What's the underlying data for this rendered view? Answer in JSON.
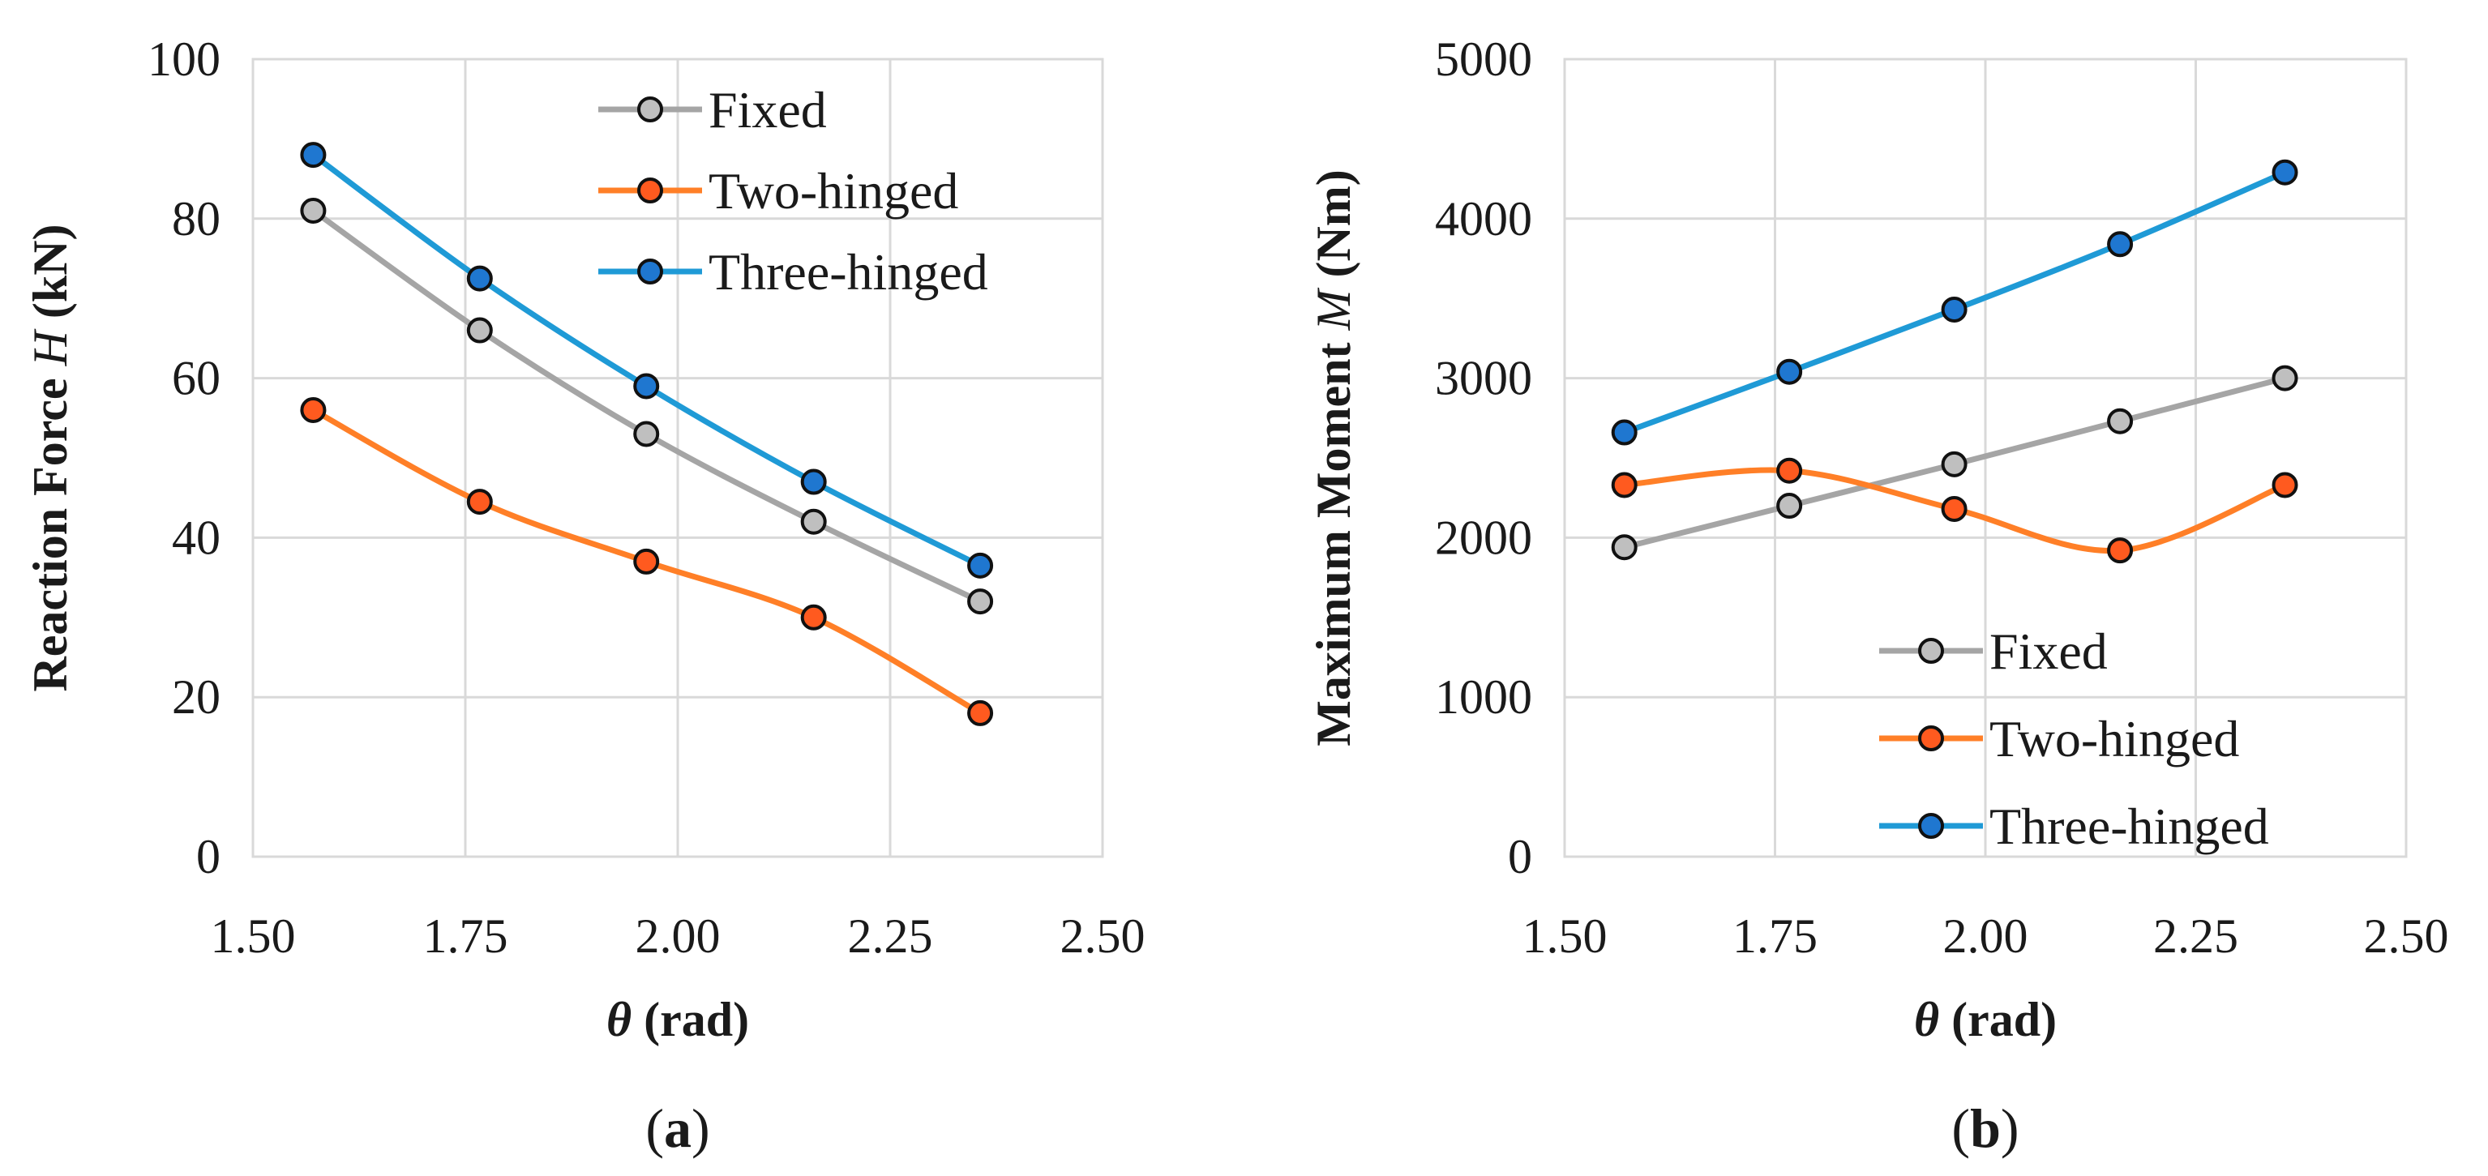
{
  "colors": {
    "fixed": "#a5a5a5",
    "two_hinged": "#ff7f27",
    "three_hinged": "#1f9ad6",
    "fixed_marker": "#bfbfbf",
    "two_hinged_marker": "#ff5a1f",
    "three_hinged_marker": "#1f77d0",
    "marker_edge": "#111111"
  },
  "chart_data": [
    {
      "type": "line",
      "panel": "a",
      "panel_label": {
        "open": "(",
        "letter": "a",
        "close": ")"
      },
      "xlabel": {
        "symbol": "θ",
        "unit": " (rad)"
      },
      "ylabel": {
        "prefix": "Reaction Force ",
        "symbol": "H",
        "suffix": " (kN)"
      },
      "xlim": [
        1.5,
        2.5
      ],
      "ylim": [
        0,
        100
      ],
      "xticks": [
        "1.50",
        "1.75",
        "2.00",
        "2.25",
        "2.50"
      ],
      "yticks": [
        "0",
        "20",
        "40",
        "60",
        "80",
        "100"
      ],
      "x": [
        1.571,
        1.767,
        1.963,
        2.16,
        2.356
      ],
      "legend_position": "top-right",
      "series": [
        {
          "name": "Fixed",
          "key": "fixed",
          "values": [
            81,
            66,
            53,
            42,
            32
          ]
        },
        {
          "name": "Two-hinged",
          "key": "two_hinged",
          "values": [
            56,
            44.5,
            37,
            30,
            18
          ]
        },
        {
          "name": "Three-hinged",
          "key": "three_hinged",
          "values": [
            88,
            72.5,
            59,
            47,
            36.5
          ]
        }
      ]
    },
    {
      "type": "line",
      "panel": "b",
      "panel_label": {
        "open": "(",
        "letter": "b",
        "close": ")"
      },
      "xlabel": {
        "symbol": "θ",
        "unit": " (rad)"
      },
      "ylabel": {
        "prefix": "Maximum Moment ",
        "symbol": "M",
        "suffix": " (Nm)"
      },
      "xlim": [
        1.5,
        2.5
      ],
      "ylim": [
        0,
        5000
      ],
      "xticks": [
        "1.50",
        "1.75",
        "2.00",
        "2.25",
        "2.50"
      ],
      "yticks": [
        "0",
        "1000",
        "2000",
        "3000",
        "4000",
        "5000"
      ],
      "x": [
        1.571,
        1.767,
        1.963,
        2.16,
        2.356
      ],
      "legend_position": "bottom-right",
      "series": [
        {
          "name": "Fixed",
          "key": "fixed",
          "values": [
            1940,
            2200,
            2460,
            2730,
            3000
          ]
        },
        {
          "name": "Two-hinged",
          "key": "two_hinged",
          "values": [
            2330,
            2420,
            2180,
            1920,
            2330
          ]
        },
        {
          "name": "Three-hinged",
          "key": "three_hinged",
          "values": [
            2660,
            3040,
            3430,
            3840,
            4290
          ]
        }
      ]
    }
  ]
}
